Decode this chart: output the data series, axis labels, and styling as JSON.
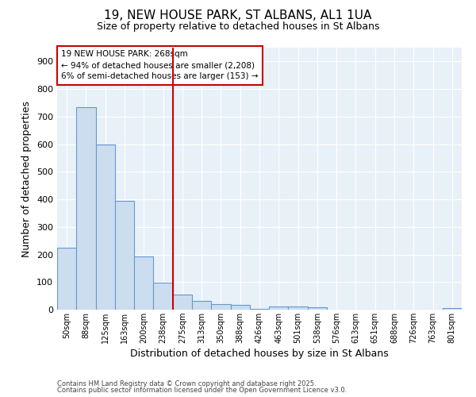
{
  "title": "19, NEW HOUSE PARK, ST ALBANS, AL1 1UA",
  "subtitle": "Size of property relative to detached houses in St Albans",
  "xlabel": "Distribution of detached houses by size in St Albans",
  "ylabel": "Number of detached properties",
  "footnote1": "Contains HM Land Registry data © Crown copyright and database right 2025.",
  "footnote2": "Contains public sector information licensed under the Open Government Licence v3.0.",
  "annotation_title": "19 NEW HOUSE PARK: 268sqm",
  "annotation_line1": "← 94% of detached houses are smaller (2,208)",
  "annotation_line2": "6% of semi-detached houses are larger (153) →",
  "bar_fill_color": "#ccddf0",
  "bar_edge_color": "#6699cc",
  "vline_color": "#cc0000",
  "vline_x": 5.5,
  "categories": [
    "50sqm",
    "88sqm",
    "125sqm",
    "163sqm",
    "200sqm",
    "238sqm",
    "275sqm",
    "313sqm",
    "350sqm",
    "388sqm",
    "426sqm",
    "463sqm",
    "501sqm",
    "538sqm",
    "576sqm",
    "613sqm",
    "651sqm",
    "688sqm",
    "726sqm",
    "763sqm",
    "801sqm"
  ],
  "values": [
    225,
    735,
    600,
    395,
    193,
    98,
    55,
    33,
    20,
    18,
    3,
    12,
    12,
    10,
    0,
    0,
    0,
    0,
    0,
    0,
    7
  ],
  "ylim": [
    0,
    950
  ],
  "yticks": [
    0,
    100,
    200,
    300,
    400,
    500,
    600,
    700,
    800,
    900
  ],
  "background_color": "#ffffff",
  "plot_bg_color": "#e8f0f8",
  "grid_color": "#ffffff",
  "annotation_box_edge_color": "#cc0000",
  "annotation_box_facecolor": "#ffffff",
  "title_fontsize": 11,
  "subtitle_fontsize": 9
}
